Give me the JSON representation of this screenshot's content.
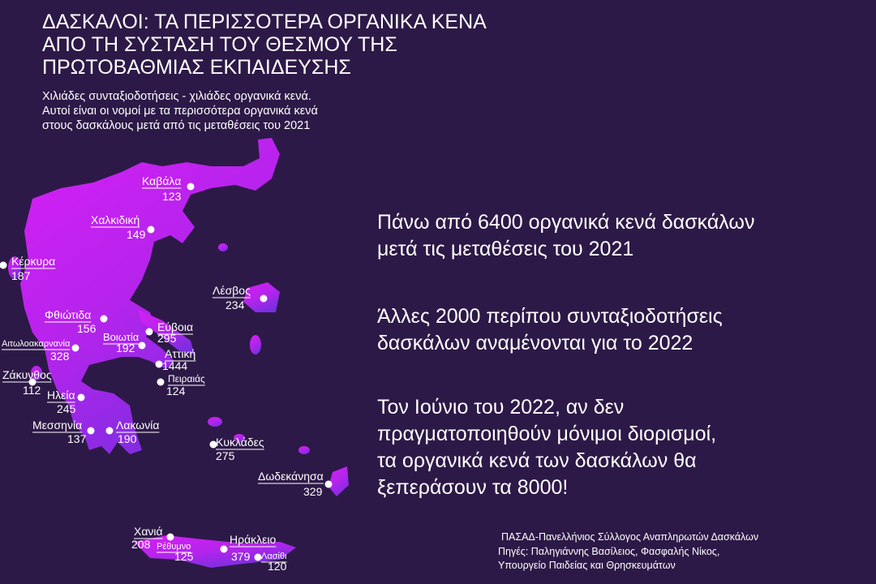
{
  "header": {
    "title_lines": [
      "ΔΑΣΚΑΛΟΙ: ΤΑ ΠΕΡΙΣΣΟΤΕΡΑ ΟΡΓΑΝΙΚΑ ΚΕΝΑ",
      "ΑΠΟ ΤΗ ΣΥΣΤΑΣΗ ΤΟΥ ΘΕΣΜΟΥ ΤΗΣ",
      "ΠΡΩΤΟΒΑΘΜΙΑΣ ΕΚΠΑΙΔΕΥΣΗΣ"
    ],
    "subtitle_lines": [
      "Χιλιάδες συνταξιοδοτήσεις - χιλιάδες οργανικά κενά.",
      "Αυτοί είναι οι νομοί με τα περισσότερα οργανικά κενά",
      "στους δασκάλους μετά από τις μεταθέσεις του 2021"
    ]
  },
  "regions": [
    {
      "name": "Καβάλα",
      "value": 123
    },
    {
      "name": "Χαλκιδική",
      "value": 149
    },
    {
      "name": "Κέρκυρα",
      "value": 187
    },
    {
      "name": "Λέσβος",
      "value": 234
    },
    {
      "name": "Φθιώτιδα",
      "value": 156
    },
    {
      "name": "Εύβοια",
      "value": 295
    },
    {
      "name": "Βοιωτία",
      "value": 192
    },
    {
      "name": "Αιτωλοακαρνανία",
      "value": 328
    },
    {
      "name": "Αττική",
      "value": 1444
    },
    {
      "name": "Πειραιάς",
      "value": 124
    },
    {
      "name": "Ζάκυνθος",
      "value": 112
    },
    {
      "name": "Ηλεία",
      "value": 245
    },
    {
      "name": "Μεσσηνία",
      "value": 137
    },
    {
      "name": "Λακωνία",
      "value": 190
    },
    {
      "name": "Κυκλάδες",
      "value": 275
    },
    {
      "name": "Δωδεκάνησα",
      "value": 329
    },
    {
      "name": "Χανιά",
      "value": 208
    },
    {
      "name": "Ρέθυμνο",
      "value": 125
    },
    {
      "name": "Ηράκλειο",
      "value": 379
    },
    {
      "name": "Λασίθι",
      "value": 120
    }
  ],
  "statements": [
    {
      "lines": [
        "Πάνω από 6400 οργανικά κενά δασκάλων",
        "μετά τις μεταθέσεις του 2021"
      ]
    },
    {
      "lines": [
        "Άλλες 2000 περίπου συνταξιοδοτήσεις",
        "δασκάλων αναμένονται για το 2022"
      ]
    },
    {
      "lines": [
        "Τον Ιούνιο του 2022, αν δεν",
        "πραγματοποιηθούν μόνιμοι διορισμοί,",
        "τα οργανικά κενά των δασκάλων θα",
        "ξεπεράσουν τα 8000!"
      ]
    }
  ],
  "footer": {
    "organization": "ΠΑΣΑΔ-Πανελλήνιος Σύλλογος Αναπληρωτών Δασκάλων",
    "source_lines": [
      "Πηγές: Παληγιάννης Βασίλειος, Φασφαλής Νίκος,",
      "Υπουργείο Παιδείας και Θρησκευμάτων"
    ]
  }
}
